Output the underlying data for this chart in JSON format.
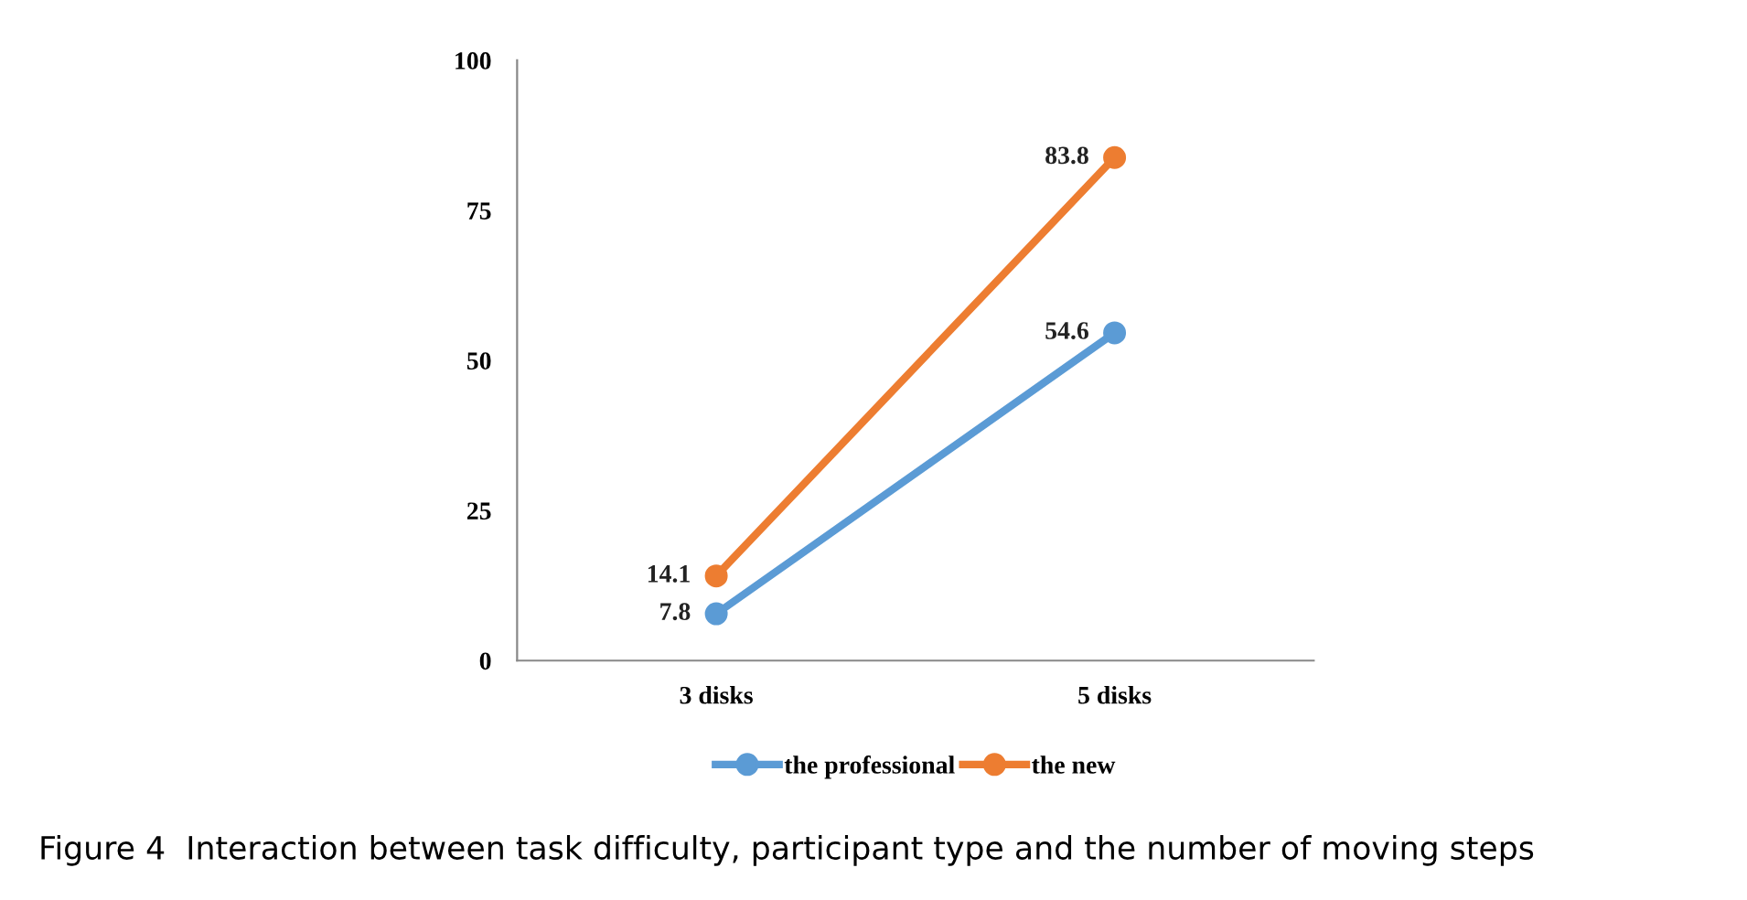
{
  "chart_data": {
    "type": "line",
    "title": "Figure 4  Interaction between task difficulty, participant type and the number of moving steps",
    "categories": [
      "3 disks",
      "5 disks"
    ],
    "series": [
      {
        "name": "the professional",
        "color": "#5b9bd5",
        "values": [
          7.8,
          54.6
        ]
      },
      {
        "name": "the new",
        "color": "#ed7d31",
        "values": [
          14.1,
          83.8
        ]
      }
    ],
    "ylim": [
      0,
      100
    ],
    "yticks": [
      0,
      25,
      50,
      75,
      100
    ],
    "grid": false,
    "legend": "bottom",
    "marker": "circle",
    "line_style": "solid",
    "data_labels": true
  }
}
